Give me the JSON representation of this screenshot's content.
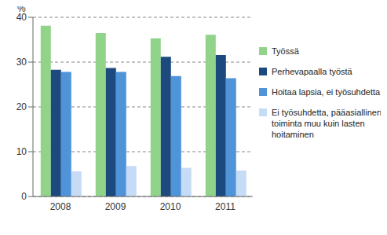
{
  "chart_data": {
    "type": "bar",
    "y_label": "%",
    "categories": [
      "2008",
      "2009",
      "2010",
      "2011"
    ],
    "series": [
      {
        "name": "Työssä",
        "color": "#92d38a",
        "values": [
          38.1,
          36.5,
          35.3,
          36.1
        ]
      },
      {
        "name": "Perhevapaalla työstä",
        "color": "#1c4a7e",
        "values": [
          28.3,
          28.7,
          31.2,
          31.6
        ]
      },
      {
        "name": "Hoitaa lapsia, ei työsuhdetta",
        "color": "#4f94d9",
        "values": [
          27.8,
          27.8,
          26.9,
          26.4
        ]
      },
      {
        "name": "Ei työsuhdetta, pääasiallinen toiminta muu kuin lasten hoitaminen",
        "color": "#c6dcf6",
        "values": [
          5.6,
          6.8,
          6.4,
          5.8
        ]
      }
    ],
    "ylim": [
      0,
      40
    ],
    "yticks": [
      0,
      10,
      20,
      30,
      40
    ],
    "grid": true,
    "legend": "right"
  }
}
